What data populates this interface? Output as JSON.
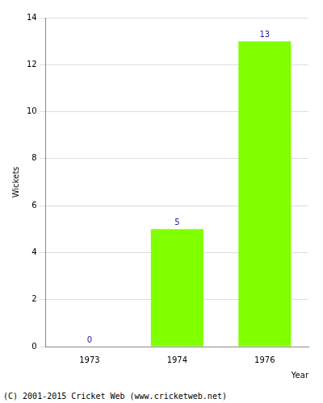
{
  "chart_data": {
    "type": "bar",
    "categories": [
      "1973",
      "1974",
      "1976"
    ],
    "values": [
      0,
      5,
      13
    ],
    "color": "#80ff00",
    "xlabel": "Year",
    "ylabel": "Wickets",
    "ylim": [
      0,
      14
    ],
    "yticks": [
      0,
      2,
      4,
      6,
      8,
      10,
      12,
      14
    ],
    "grid": true,
    "data_labels": true,
    "annotations": [
      "(C) 2001-2015 Cricket Web (www.cricketweb.net)"
    ]
  }
}
